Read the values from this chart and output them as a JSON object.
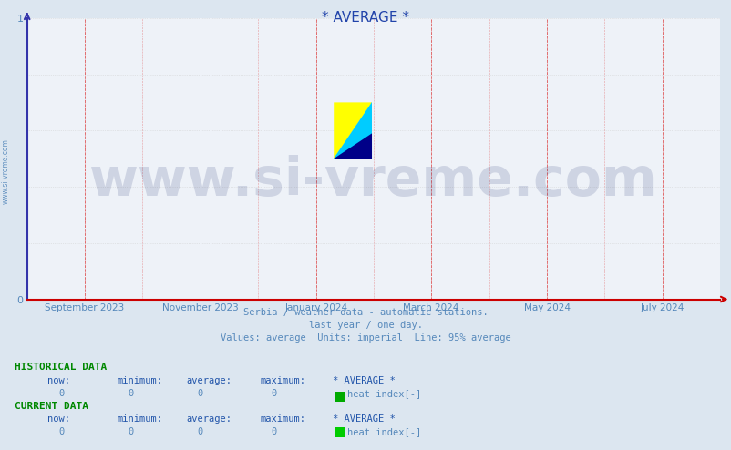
{
  "title": "* AVERAGE *",
  "title_color": "#2244aa",
  "bg_color": "#dce6f0",
  "plot_bg_color": "#eef2f8",
  "grid_color_red": "#dd4444",
  "grid_color_gray": "#cccccc",
  "x_axis_color": "#cc0000",
  "y_axis_color": "#3333aa",
  "ylim": [
    0,
    1
  ],
  "yticks": [
    0,
    1
  ],
  "x_tick_labels": [
    "September 2023",
    "November 2023",
    "January 2024",
    "March 2024",
    "May 2024",
    "July 2024"
  ],
  "x_tick_positions": [
    0.083,
    0.25,
    0.417,
    0.583,
    0.75,
    0.917
  ],
  "subtitle_lines": [
    "Serbia / weather data - automatic stations.",
    "last year / one day.",
    "Values: average  Units: imperial  Line: 95% average"
  ],
  "subtitle_color": "#5588bb",
  "watermark_text": "www.si-vreme.com",
  "watermark_color": "#1a2a6c",
  "watermark_alpha": 0.15,
  "watermark_fontsize": 42,
  "side_label": "www.si-vreme.com",
  "side_label_color": "#5588bb",
  "section_hist": "HISTORICAL DATA",
  "section_curr": "CURRENT DATA",
  "col_headers": [
    "now:",
    "minimum:",
    "average:",
    "maximum:",
    "* AVERAGE *"
  ],
  "hist_values": [
    "0",
    "0",
    "0",
    "0"
  ],
  "curr_values": [
    "0",
    "0",
    "0",
    "0"
  ],
  "legend_label": "heat index[-]",
  "legend_color_hist": "#00aa00",
  "legend_color_curr": "#00cc00",
  "table_color": "#5588bb",
  "header_color": "#2255aa",
  "section_color": "#008800",
  "logo_yellow": "#ffff00",
  "logo_cyan": "#00ccff",
  "logo_navy": "#000088"
}
